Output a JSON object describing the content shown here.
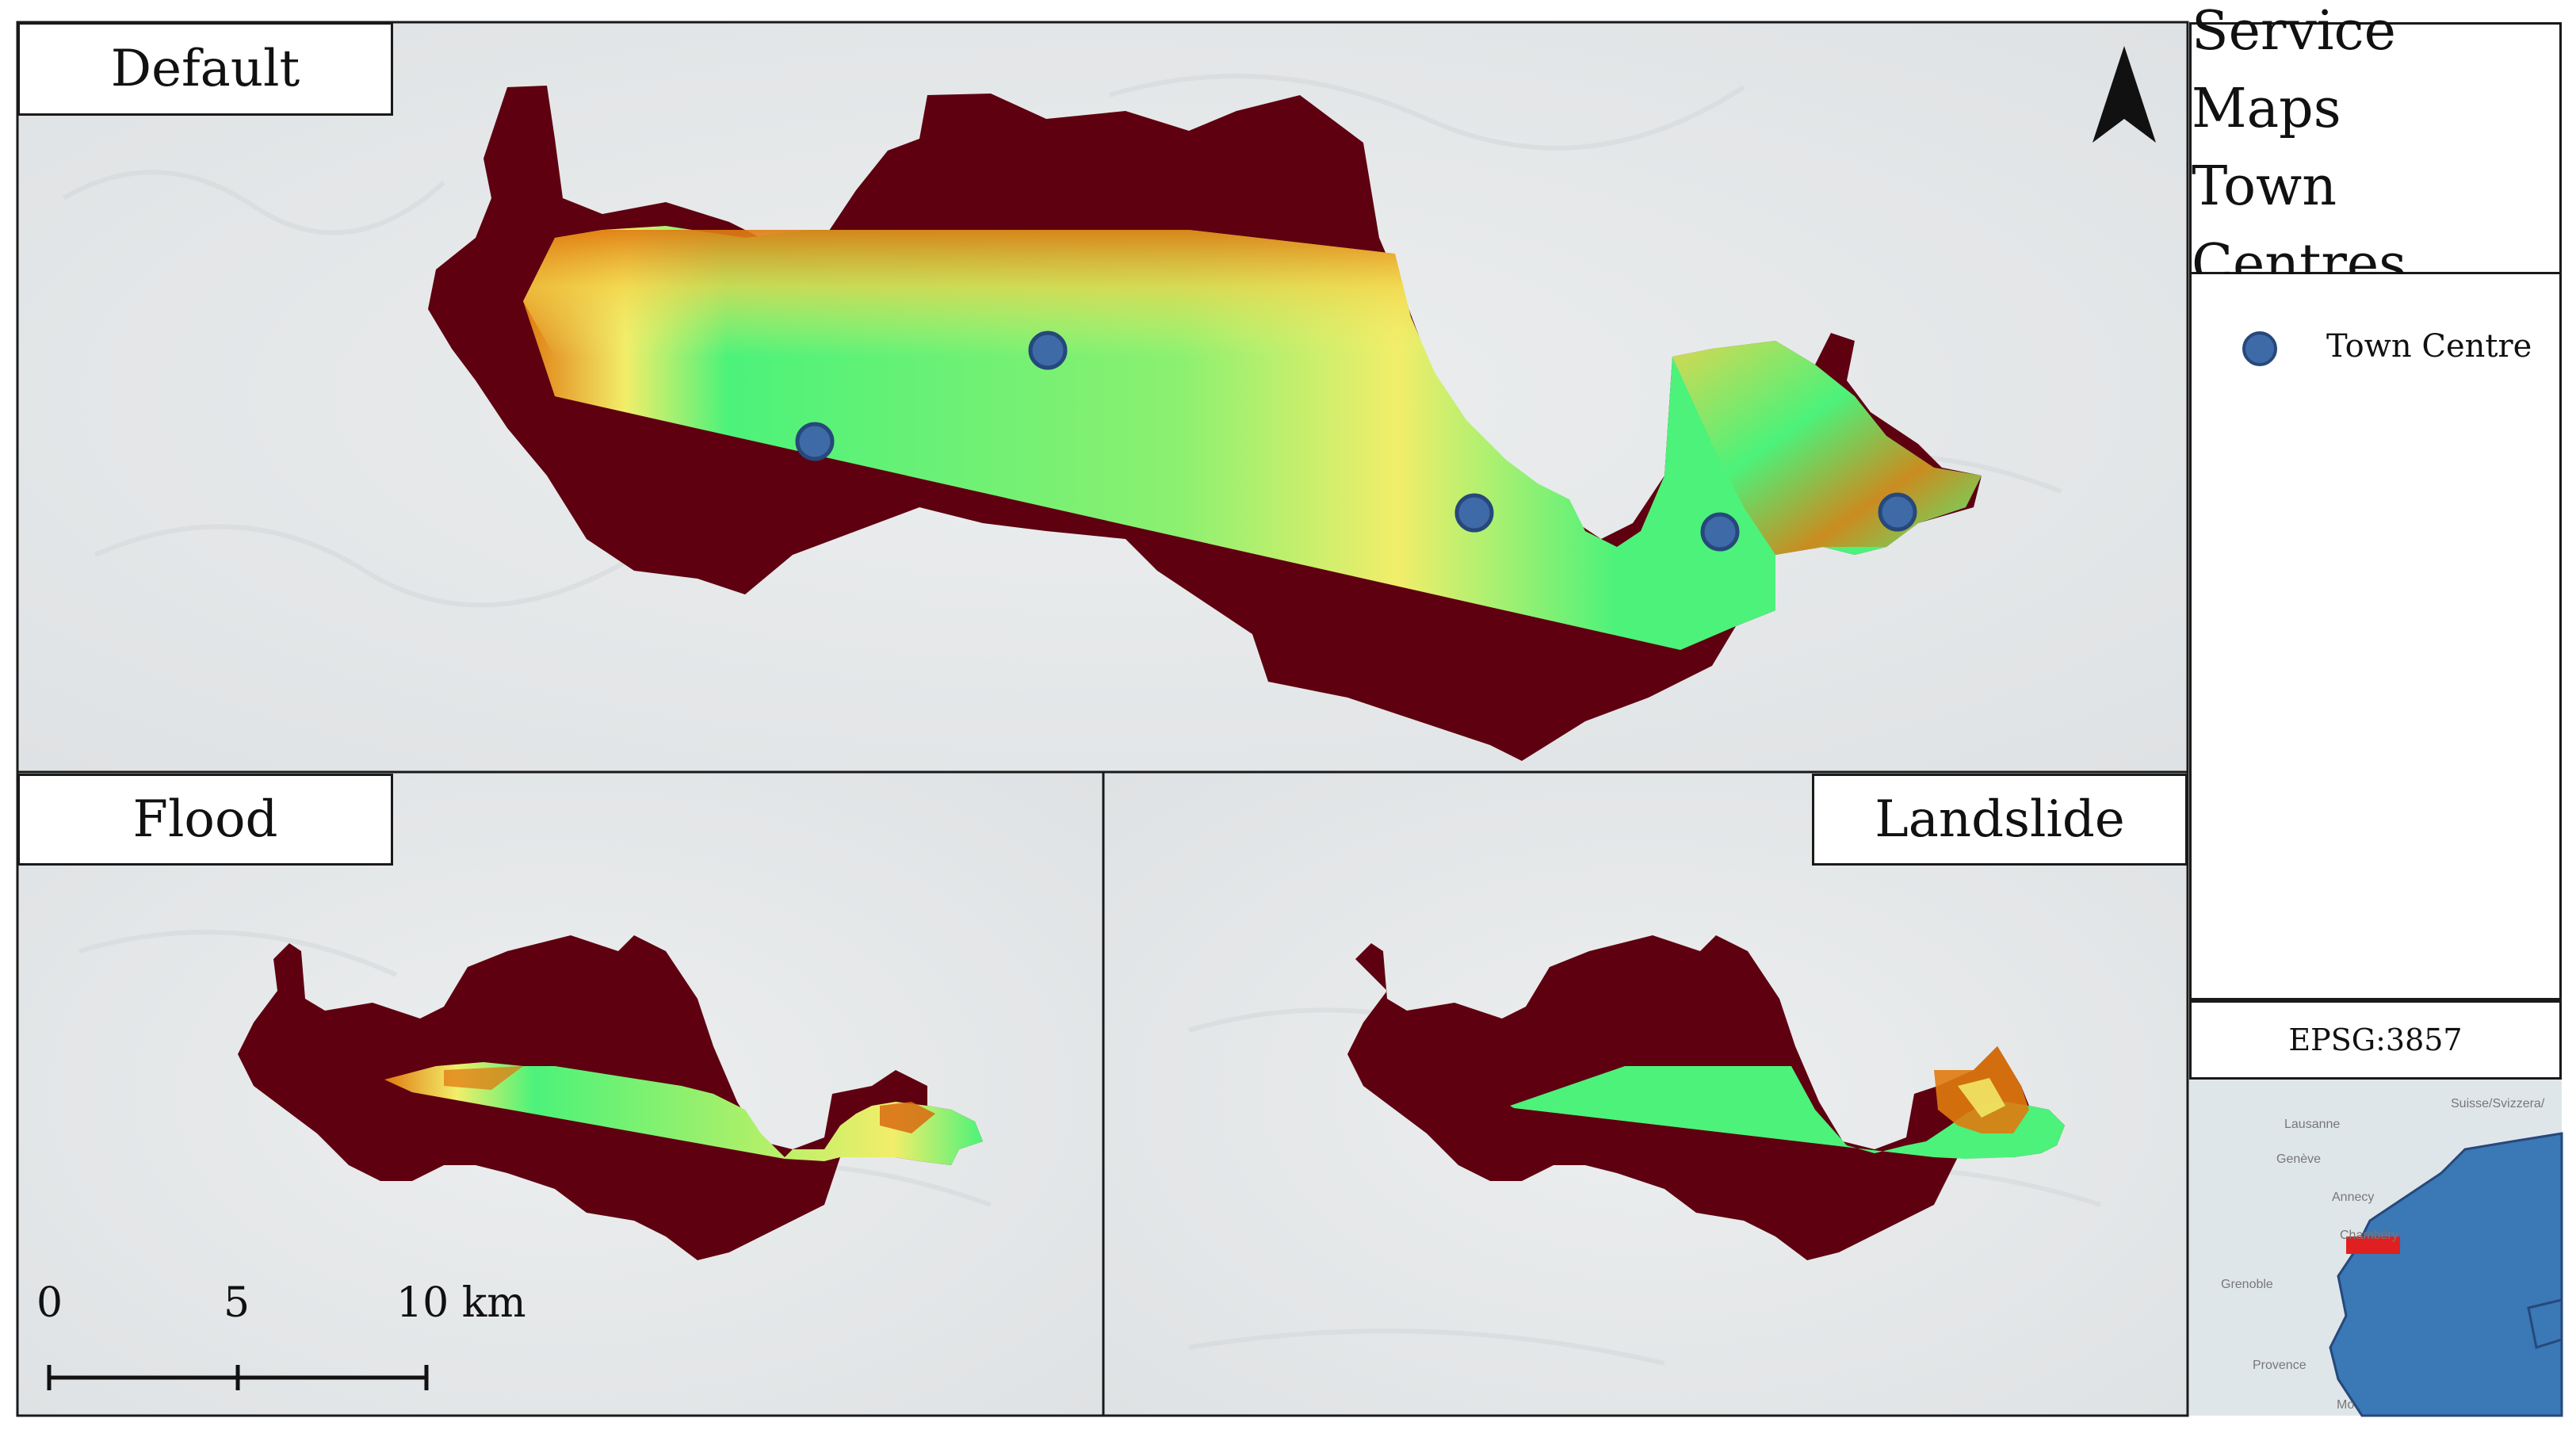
{
  "panels": {
    "default_label": "Default",
    "flood_label": "Flood",
    "landslide_label": "Landslide"
  },
  "title": {
    "line1": "Service Maps",
    "line2": "Town Centres"
  },
  "legend": {
    "item_label": "Town Centre",
    "item_icon": "town-centre-dot-icon",
    "item_color": "#3e6aa8"
  },
  "crs": "EPSG:3857",
  "scale_bar": {
    "tick0": "0",
    "tick1": "5",
    "tick2": "10 km"
  },
  "inset": {
    "place_labels": [
      "Suisse/Svizzera/",
      "Lausanne",
      "Genève",
      "Annecy",
      "Chambéry",
      "Grenoble",
      "Provence",
      "Mo"
    ]
  },
  "colors": {
    "region_fill": "#5e0010",
    "service_low": "#4cf27a",
    "service_mid": "#f2ee6a",
    "service_high": "#e07a10",
    "inset_country": "#3a78b6",
    "inset_extent": "#e02020"
  },
  "north_arrow_icon": "north-arrow-icon"
}
